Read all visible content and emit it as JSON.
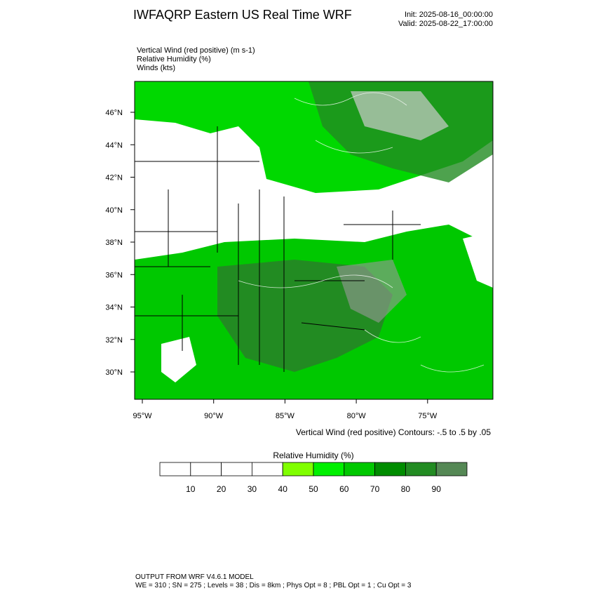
{
  "header": {
    "title": "IWFAQRP Eastern US Real Time WRF",
    "init": "Init: 2025-08-16_00:00:00",
    "valid": "Valid: 2025-08-22_17:00:00"
  },
  "fields": [
    "Vertical Wind (red positive)   (m s-1)",
    "Relative Humidity   (%)",
    "Winds   (kts)"
  ],
  "map": {
    "lat_labels": [
      "46°N",
      "44°N",
      "42°N",
      "40°N",
      "38°N",
      "36°N",
      "34°N",
      "32°N",
      "30°N"
    ],
    "lon_labels": [
      "95°W",
      "90°W",
      "85°W",
      "80°W",
      "75°W"
    ],
    "contour_note": "Vertical Wind (red positive) Contours: -.5 to .5 by .05"
  },
  "colorbar": {
    "title": "Relative Humidity  (%)",
    "labels": [
      "10",
      "20",
      "30",
      "40",
      "50",
      "60",
      "70",
      "80",
      "90"
    ],
    "colors": [
      "#ffffff",
      "#ffffff",
      "#ffffff",
      "#ffffff",
      "#80ff00",
      "#00f000",
      "#00c800",
      "#008c00",
      "#228b22",
      "#558855"
    ]
  },
  "footer": {
    "line1": "OUTPUT FROM WRF V4.6.1 MODEL",
    "line2": "WE = 310 ; SN = 275 ; Levels = 38 ; Dis = 8km ; Phys Opt = 8 ; PBL Opt = 1 ; Cu Opt = 3"
  }
}
